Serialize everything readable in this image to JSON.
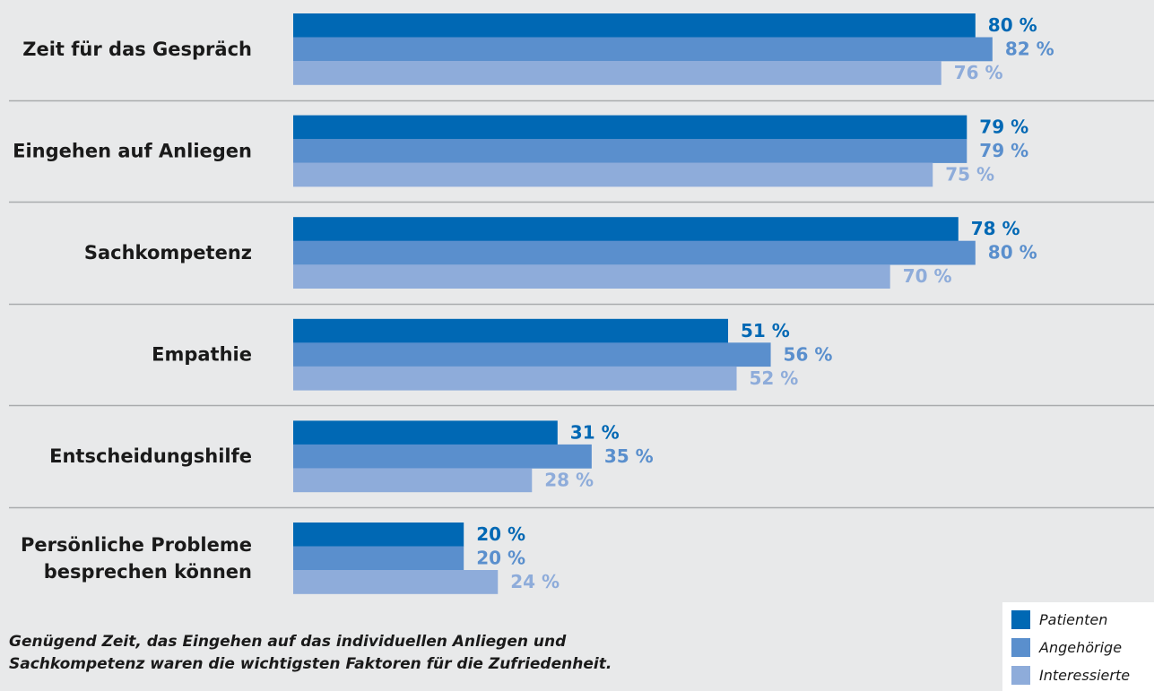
{
  "chart_data": {
    "type": "bar",
    "orientation": "horizontal",
    "categories": [
      [
        "Zeit für das Gespräch"
      ],
      [
        "Eingehen auf Anliegen"
      ],
      [
        "Sachkompetenz"
      ],
      [
        "Empathie"
      ],
      [
        "Entscheidungshilfe"
      ],
      [
        "Persönliche Probleme",
        "besprechen können"
      ]
    ],
    "series": [
      {
        "name": "Patienten",
        "color": "#0068b4",
        "values": [
          80,
          79,
          78,
          51,
          31,
          20
        ]
      },
      {
        "name": "Angehörige",
        "color": "#5a8fcd",
        "values": [
          82,
          79,
          80,
          56,
          35,
          20
        ]
      },
      {
        "name": "Interessierte",
        "color": "#8eacda",
        "values": [
          76,
          75,
          70,
          52,
          28,
          24
        ]
      }
    ],
    "value_suffix": " %",
    "xlim": [
      0,
      100
    ],
    "grid": false,
    "legend_position": "bottom-right"
  },
  "caption": {
    "line1": "Genügend Zeit, das Eingehen auf das individuellen Anliegen und",
    "line2": "Sachkompetenz waren die wichtigsten Faktoren für die Zufriedenheit."
  },
  "legend": {
    "items": [
      {
        "label": "Patienten",
        "color": "#0068b4"
      },
      {
        "label": "Angehörige",
        "color": "#5a8fcd"
      },
      {
        "label": "Interessierte",
        "color": "#8eacda"
      }
    ]
  }
}
